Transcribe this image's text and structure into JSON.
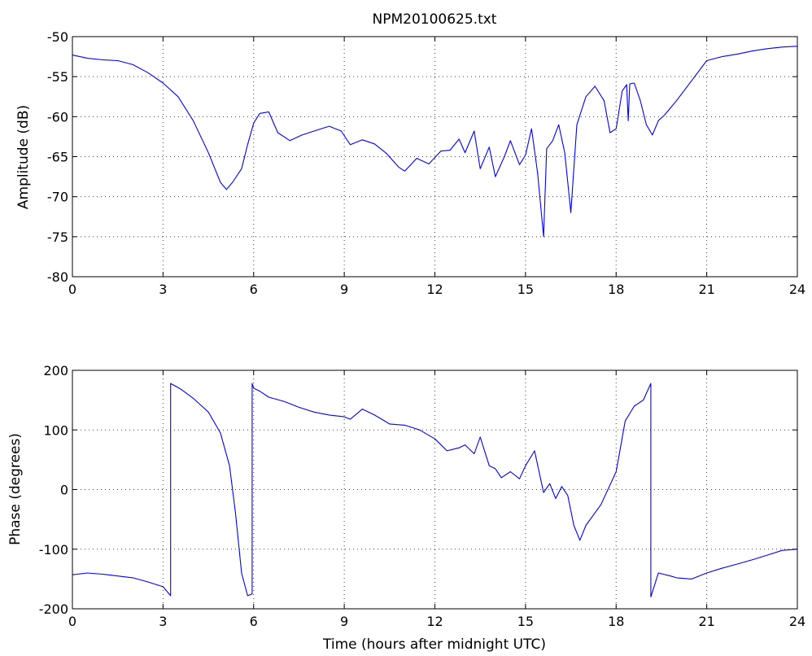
{
  "chart_data": [
    {
      "type": "line",
      "title": "NPM20100625.txt",
      "xlabel": "",
      "ylabel": "Amplitude (dB)",
      "xlim": [
        0,
        24
      ],
      "ylim": [
        -80,
        -50
      ],
      "xticks": [
        "0",
        "3",
        "6",
        "9",
        "12",
        "15",
        "18",
        "21",
        "24"
      ],
      "yticks": [
        "-80",
        "-75",
        "-70",
        "-65",
        "-60",
        "-55",
        "-50"
      ],
      "grid": true,
      "series": [
        {
          "color": "#0000ff",
          "x": [
            0,
            0.5,
            1,
            1.5,
            2,
            2.5,
            3,
            3.5,
            4,
            4.5,
            4.9,
            5.1,
            5.3,
            5.6,
            5.8,
            6.0,
            6.2,
            6.5,
            6.8,
            7.2,
            7.6,
            8.0,
            8.5,
            8.9,
            9.2,
            9.6,
            10.0,
            10.4,
            10.8,
            11.0,
            11.4,
            11.8,
            12.2,
            12.5,
            12.8,
            13.0,
            13.3,
            13.5,
            13.8,
            14.0,
            14.3,
            14.5,
            14.8,
            15.0,
            15.2,
            15.4,
            15.6,
            15.7,
            15.9,
            16.1,
            16.3,
            16.5,
            16.7,
            17.0,
            17.3,
            17.6,
            17.8,
            18.0,
            18.2,
            18.35,
            18.4,
            18.45,
            18.6,
            18.8,
            19.0,
            19.2,
            19.4,
            19.6,
            20.0,
            20.5,
            21.0,
            21.5,
            22.0,
            22.5,
            23.0,
            23.5,
            24
          ],
          "y": [
            -52.3,
            -52.7,
            -52.9,
            -53.0,
            -53.5,
            -54.5,
            -55.8,
            -57.5,
            -60.5,
            -64.5,
            -68.2,
            -69.1,
            -68.2,
            -66.5,
            -63.5,
            -60.8,
            -59.6,
            -59.4,
            -62.0,
            -63.0,
            -62.3,
            -61.8,
            -61.2,
            -61.8,
            -63.5,
            -62.9,
            -63.4,
            -64.6,
            -66.3,
            -66.8,
            -65.2,
            -65.9,
            -64.3,
            -64.2,
            -62.8,
            -64.5,
            -61.8,
            -66.5,
            -63.8,
            -67.5,
            -65.0,
            -63.0,
            -66.0,
            -64.8,
            -61.5,
            -67.0,
            -75.0,
            -64.0,
            -63.0,
            -61.0,
            -64.5,
            -72.0,
            -61.0,
            -57.5,
            -56.2,
            -58.0,
            -62.0,
            -61.5,
            -56.8,
            -56.0,
            -60.5,
            -55.9,
            -55.8,
            -58.0,
            -61.0,
            -62.3,
            -60.5,
            -59.8,
            -58.0,
            -55.5,
            -53.0,
            -52.5,
            -52.2,
            -51.8,
            -51.5,
            -51.3,
            -51.2
          ]
        }
      ]
    },
    {
      "type": "line",
      "title": "",
      "xlabel": "Time (hours after midnight UTC)",
      "ylabel": "Phase (degrees)",
      "xlim": [
        0,
        24
      ],
      "ylim": [
        -200,
        200
      ],
      "xticks": [
        "0",
        "3",
        "6",
        "9",
        "12",
        "15",
        "18",
        "21",
        "24"
      ],
      "yticks": [
        "-200",
        "-100",
        "0",
        "100",
        "200"
      ],
      "grid": true,
      "series": [
        {
          "color": "#0000ff",
          "x": [
            0,
            0.5,
            1,
            1.5,
            2,
            2.5,
            3.0,
            3.25,
            3.25,
            3.6,
            4.0,
            4.5,
            4.9,
            5.2,
            5.4,
            5.6,
            5.8,
            5.95,
            5.95,
            6.0,
            6.2,
            6.5,
            7.0,
            7.5,
            8.0,
            8.5,
            9.0,
            9.2,
            9.6,
            10.0,
            10.5,
            11.0,
            11.5,
            12.0,
            12.4,
            12.8,
            13.0,
            13.3,
            13.5,
            13.8,
            14.0,
            14.2,
            14.5,
            14.8,
            15.0,
            15.3,
            15.6,
            15.8,
            16.0,
            16.2,
            16.4,
            16.6,
            16.8,
            17.0,
            17.5,
            18.0,
            18.3,
            18.6,
            18.9,
            19.15,
            19.15,
            19.4,
            19.8,
            20.0,
            20.5,
            21.0,
            21.5,
            22.0,
            22.5,
            23.0,
            23.5,
            24
          ],
          "y": [
            -143,
            -140,
            -142,
            -145,
            -148,
            -155,
            -163,
            -178,
            178,
            168,
            153,
            130,
            95,
            40,
            -40,
            -140,
            -178,
            -175,
            178,
            170,
            165,
            155,
            148,
            138,
            130,
            125,
            122,
            118,
            135,
            125,
            110,
            108,
            100,
            85,
            65,
            70,
            75,
            60,
            88,
            40,
            35,
            20,
            30,
            18,
            40,
            65,
            -5,
            10,
            -15,
            5,
            -10,
            -60,
            -85,
            -60,
            -25,
            30,
            115,
            140,
            150,
            178,
            -180,
            -140,
            -145,
            -148,
            -150,
            -140,
            -132,
            -125,
            -118,
            -110,
            -102,
            -100
          ]
        }
      ]
    }
  ]
}
